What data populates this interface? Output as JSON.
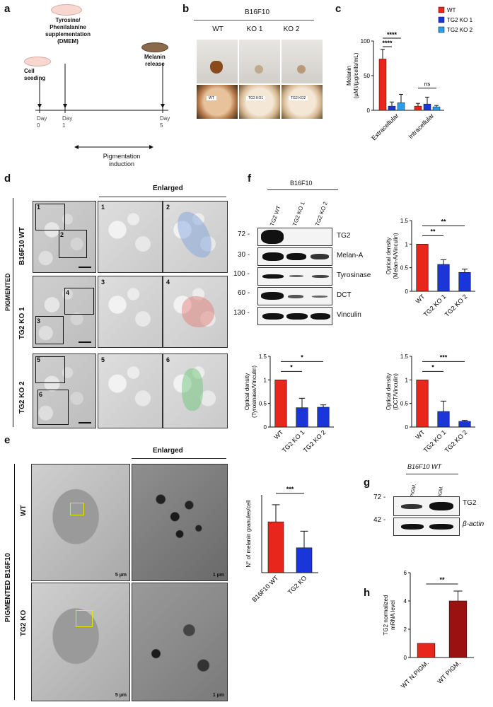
{
  "panels": {
    "a": "a",
    "b": "b",
    "c": "c",
    "d": "d",
    "e": "e",
    "f": "f",
    "g": "g",
    "h": "h"
  },
  "a": {
    "supplement_label": "Tyrosine/\nPhenilalanine\nsupplementation\n(DMEM)",
    "seeding_label": "Cell\nseeding",
    "release_label": "Melanin\nrelease",
    "day0": "Day\n0",
    "day1": "Day\n1",
    "day5": "Day\n5",
    "induction": "Pigmentation\ninduction"
  },
  "b": {
    "title": "B16F10",
    "cols": [
      "WT",
      "KO 1",
      "KO 2"
    ],
    "dish_labels": [
      "WT",
      "TG2 KO1",
      "TG2 KO2"
    ]
  },
  "c": {
    "chart_data": {
      "type": "bar",
      "categories": [
        "Extracellular",
        "Intracellular"
      ],
      "series": [
        {
          "name": "WT",
          "values": [
            74,
            6
          ],
          "errors": [
            14,
            4
          ],
          "color": "#e8261b"
        },
        {
          "name": "TG2 KO 1",
          "values": [
            6,
            9
          ],
          "errors": [
            6,
            10
          ],
          "color": "#1a36d9"
        },
        {
          "name": "TG2 KO 2",
          "values": [
            11,
            5
          ],
          "errors": [
            12,
            2
          ],
          "color": "#2a9de8"
        }
      ],
      "ylabel": "Melanin\n(µM)/(µg/cells/mL)",
      "ylim": [
        0,
        100
      ],
      "yticks": [
        0,
        50,
        100
      ],
      "annotations": [
        "****",
        "****",
        "ns"
      ],
      "legend": "top-right"
    }
  },
  "d": {
    "side_label": "PIGMENTED",
    "rows": [
      "B16F10 WT",
      "TG2 KO 1",
      "TG2 KO 2"
    ],
    "header": "Enlarged",
    "nums": [
      "1",
      "2",
      "3",
      "4",
      "5",
      "6",
      "1",
      "2",
      "3",
      "4",
      "5",
      "6"
    ]
  },
  "e": {
    "side_label": "PIGMENTED B16F10",
    "rows": [
      "WT",
      "TG2 KO"
    ],
    "header": "Enlarged",
    "scale_left": "5 µm",
    "scale_right": "1 µm",
    "chart_data": {
      "type": "bar",
      "categories": [
        "B16F10 WT",
        "TG2 KO"
      ],
      "values": [
        98,
        48
      ],
      "errors": [
        33,
        32
      ],
      "colors": [
        "#e8261b",
        "#1a36d9"
      ],
      "ylabel": "N° of melanin granules/cell",
      "ylim": [
        0,
        150
      ],
      "annotations": [
        "***"
      ]
    }
  },
  "f": {
    "title": "B16F10",
    "lanes": [
      "TG2 WT",
      "TG2 KO 1",
      "TG2 KO 2"
    ],
    "mw": [
      "72 -",
      "30 -",
      "100 -",
      "60 -",
      "130 -"
    ],
    "proteins": [
      "TG2",
      "Melan-A",
      "Tyrosinase",
      "DCT",
      "Vinculin"
    ],
    "charts": [
      {
        "ylabel": "Optical density\n(Melan-A/Vinculin)",
        "categories": [
          "WT",
          "TG2 KO 1",
          "TG2 KO 2"
        ],
        "values": [
          1.0,
          0.57,
          0.4
        ],
        "errors": [
          0,
          0.1,
          0.07
        ],
        "ylim": [
          0,
          1.5
        ],
        "yticks": [
          0,
          0.5,
          1.0,
          1.5
        ],
        "annotations": [
          "**",
          "**"
        ]
      },
      {
        "ylabel": "Optical density\n(Tyrosinase/Vinculin)",
        "categories": [
          "WT",
          "TG2 KO 1",
          "TG2 KO 2"
        ],
        "values": [
          1.0,
          0.41,
          0.42
        ],
        "errors": [
          0,
          0.2,
          0.05
        ],
        "ylim": [
          0,
          1.5
        ],
        "yticks": [
          0,
          0.5,
          1.0,
          1.5
        ],
        "annotations": [
          "*",
          "*"
        ]
      },
      {
        "ylabel": "Optical density\n(DCT/Vinculin)",
        "categories": [
          "WT",
          "TG2 KO 1",
          "TG2 KO 2"
        ],
        "values": [
          1.0,
          0.33,
          0.12
        ],
        "errors": [
          0,
          0.22,
          0.02
        ],
        "ylim": [
          0,
          1.5
        ],
        "yticks": [
          0,
          0.5,
          1.0,
          1.5
        ],
        "annotations": [
          "*",
          "***"
        ]
      }
    ]
  },
  "g": {
    "title": "B16F10 WT",
    "lanes": [
      "N. PIGM.",
      "PIGM."
    ],
    "mw": [
      "72 -",
      "42 -"
    ],
    "proteins": [
      "TG2",
      "β-actin"
    ]
  },
  "h": {
    "chart_data": {
      "type": "bar",
      "categories": [
        "WT N.PIGM.",
        "WT PIGM."
      ],
      "values": [
        1.0,
        4.0
      ],
      "errors": [
        0,
        0.7
      ],
      "colors": [
        "#e8261b",
        "#9b1010"
      ],
      "ylabel": "TG2 normalized\nmRNA level",
      "ylim": [
        0,
        6
      ],
      "yticks": [
        0,
        2,
        4,
        6
      ],
      "annotations": [
        "**"
      ]
    }
  },
  "colors": {
    "wt": "#e8261b",
    "ko1": "#1a36d9",
    "ko2": "#2a9de8",
    "pigm": "#9b1010"
  }
}
